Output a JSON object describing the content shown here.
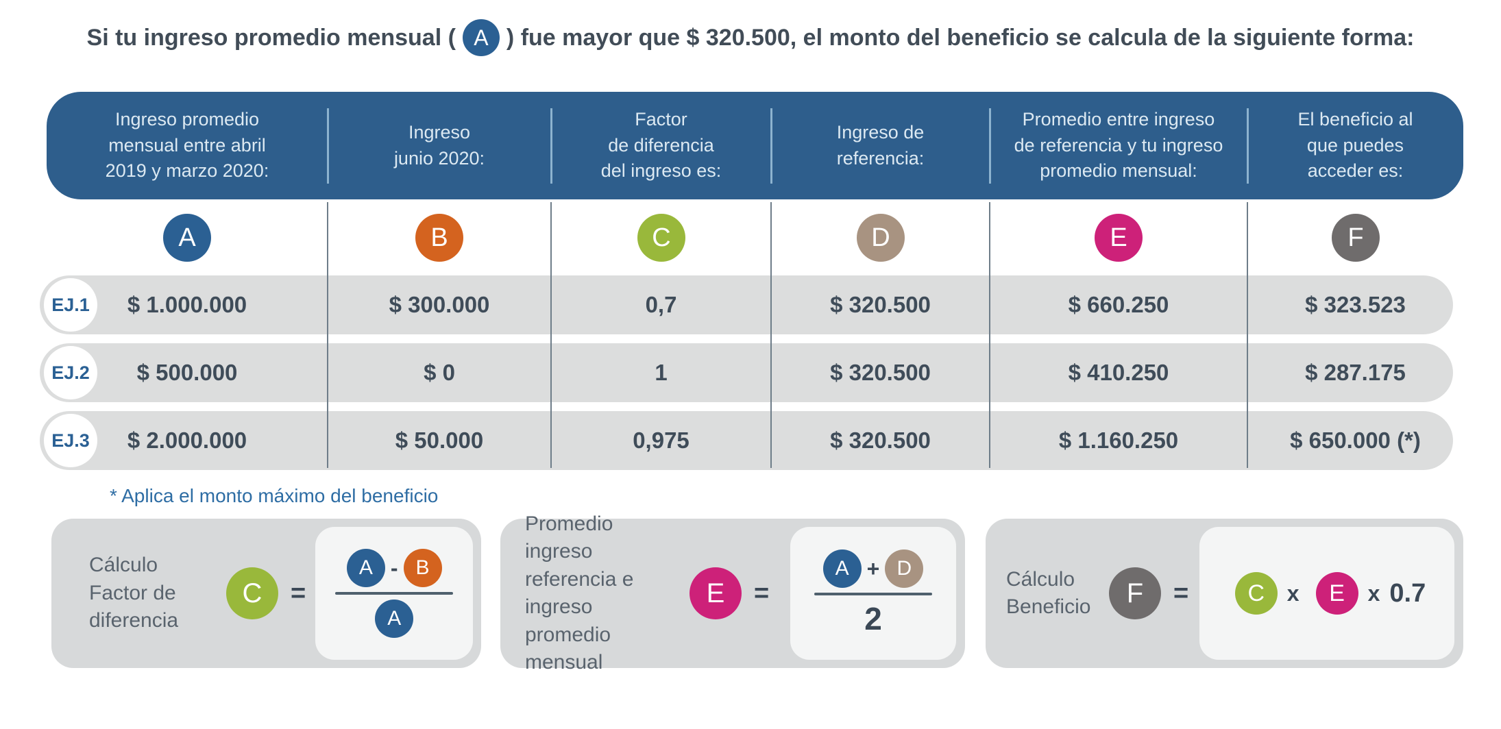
{
  "colors": {
    "header_bg": "#2e5e8c",
    "row_bg": "#dcdddd",
    "card_bg": "#d7d9da",
    "box_bg": "#f4f5f5",
    "footnote_blue": "#2e6da4",
    "text_dark": "#3f4a55",
    "A": "#2b6093",
    "B": "#d4631f",
    "C": "#99b83b",
    "D": "#a89381",
    "E": "#cd2179",
    "F": "#6f6c6c"
  },
  "title": {
    "prefix": "Si tu ingreso promedio mensual (",
    "badge": "A",
    "suffix": ") fue mayor que $ 320.500, el monto del beneficio se calcula de la siguiente forma:"
  },
  "table": {
    "headers": [
      "Ingreso promedio\nmensual entre abril\n2019 y marzo 2020:",
      "Ingreso\njunio 2020:",
      "Factor\nde diferencia\ndel ingreso es:",
      "Ingreso de\nreferencia:",
      "Promedio entre ingreso\nde referencia y tu ingreso\npromedio mensual:",
      "El beneficio al\nque puedes\nacceder es:"
    ],
    "column_badges": [
      "A",
      "B",
      "C",
      "D",
      "E",
      "F"
    ],
    "rows": [
      {
        "label": "EJ.1",
        "values": [
          "$ 1.000.000",
          "$ 300.000",
          "0,7",
          "$ 320.500",
          "$ 660.250",
          "$ 323.523"
        ]
      },
      {
        "label": "EJ.2",
        "values": [
          "$ 500.000",
          "$ 0",
          "1",
          "$ 320.500",
          "$ 410.250",
          "$ 287.175"
        ]
      },
      {
        "label": "EJ.3",
        "values": [
          "$ 2.000.000",
          "$ 50.000",
          "0,975",
          "$ 320.500",
          "$ 1.160.250",
          "$ 650.000 (*)"
        ]
      }
    ]
  },
  "footnote": "* Aplica el monto máximo del beneficio",
  "cards": [
    {
      "label": "Cálculo\nFactor de\ndiferencia",
      "result": "C",
      "equals": "=",
      "numerator": [
        "A",
        "-",
        "B"
      ],
      "denominator": "A"
    },
    {
      "label": "Promedio ingreso\nreferencia e\ningreso promedio\nmensual",
      "result": "E",
      "equals": "=",
      "numerator": [
        "A",
        "+",
        "D"
      ],
      "denominator": "2"
    },
    {
      "label": "Cálculo\nBeneficio",
      "result": "F",
      "equals": "=",
      "expression": [
        "C",
        "x",
        "E",
        "x",
        "0.7"
      ]
    }
  ]
}
